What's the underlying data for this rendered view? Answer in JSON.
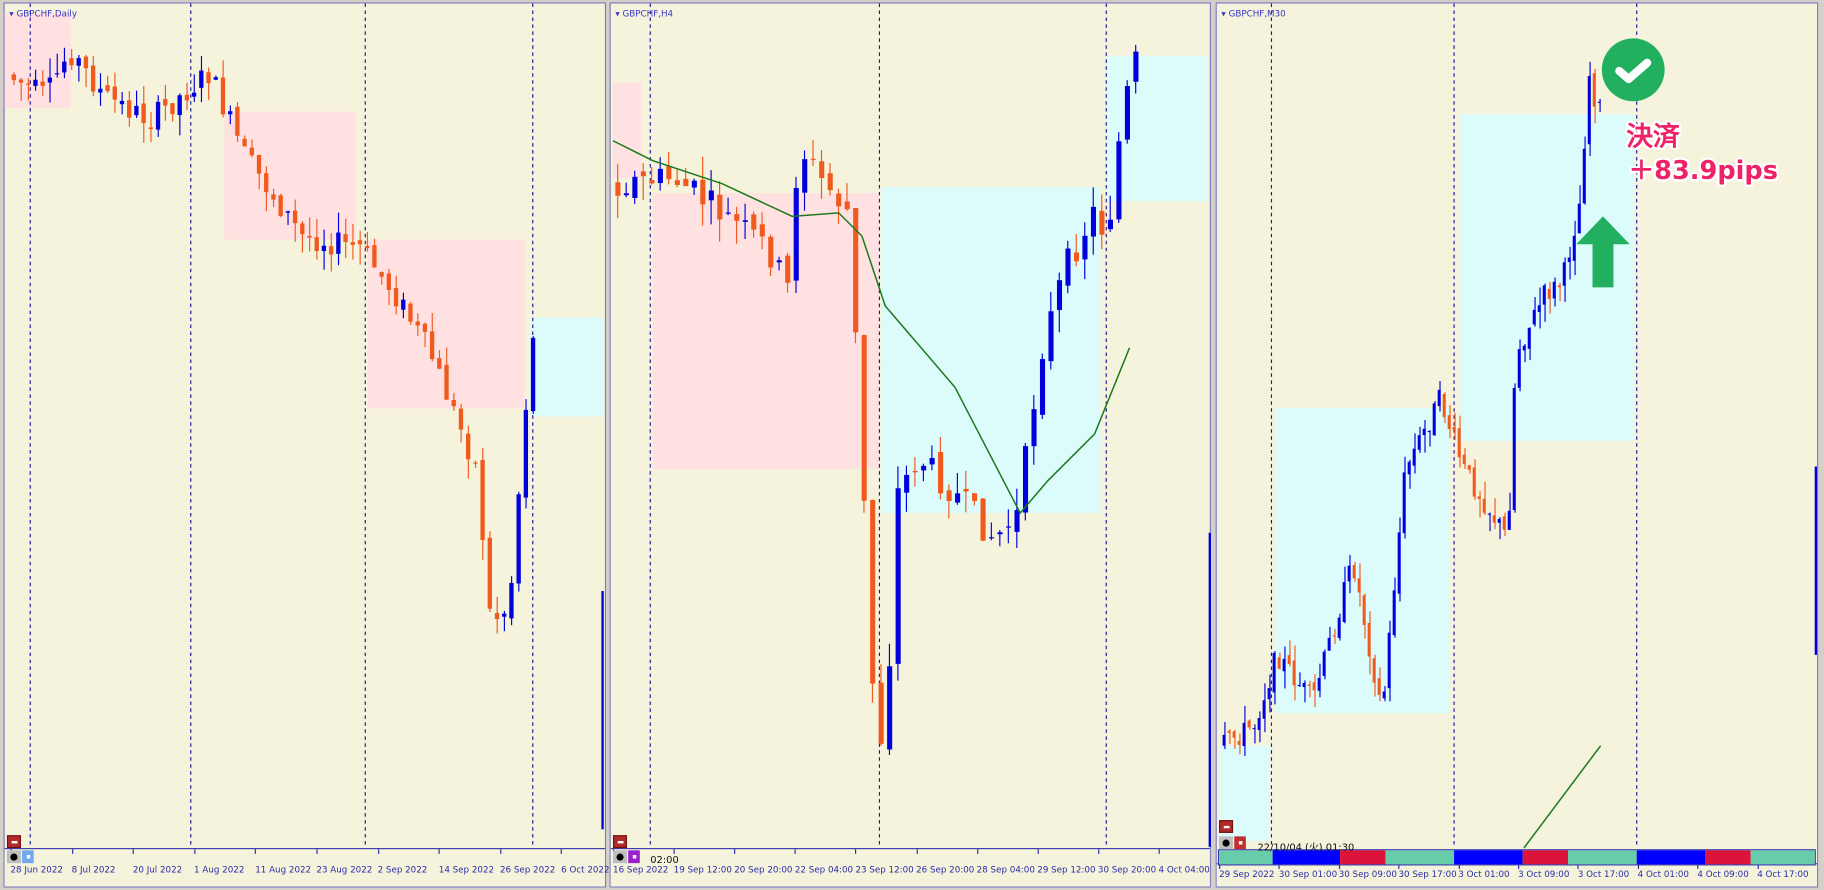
{
  "colors": {
    "background": "#f5f3dc",
    "bull_candle": "#0000dd",
    "bear_candle": "#f05a1e",
    "supply_zone": "#ffe1e1",
    "demand_zone": "#dcfcfc",
    "moving_average": "#1e7a1e",
    "axis_text": "#2a2aa8",
    "annotation_text": "#ee2266",
    "annotation_green": "#22b060"
  },
  "charts": [
    {
      "title": "GBPCHF,Daily",
      "time_labels": [
        "28 Jun 2022",
        "8 Jul 2022",
        "20 Jul 2022",
        "1 Aug 2022",
        "11 Aug 2022",
        "23 Aug 2022",
        "2 Sep 2022",
        "14 Sep 2022",
        "26 Sep 2022",
        "6 Oct 2022"
      ]
    },
    {
      "title": "GBPCHF,H4",
      "cursor_time": "02:00",
      "time_labels": [
        "16 Sep 2022",
        "19 Sep 12:00",
        "20 Sep 20:00",
        "22 Sep 04:00",
        "23 Sep 12:00",
        "26 Sep 20:00",
        "28 Sep 04:00",
        "29 Sep 12:00",
        "30 Sep 20:00",
        "4 Oct 04:00"
      ]
    },
    {
      "title": "GBPCHF,M30",
      "cursor_time": "22/10/04 (火) 01:30",
      "time_labels": [
        "29 Sep 2022",
        "30 Sep 01:00",
        "30 Sep 09:00",
        "30 Sep 17:00",
        "3 Oct 01:00",
        "3 Oct 09:00",
        "3 Oct 17:00",
        "4 Oct 01:00",
        "4 Oct 09:00",
        "4 Oct 17:00"
      ],
      "sessions": [
        {
          "name": "teal",
          "color": "#66ccaa"
        },
        {
          "name": "blue",
          "color": "#0000ff"
        },
        {
          "name": "red",
          "color": "#dc143c"
        },
        {
          "name": "teal",
          "color": "#66ccaa"
        },
        {
          "name": "blue",
          "color": "#0000ff"
        },
        {
          "name": "red",
          "color": "#dc143c"
        },
        {
          "name": "teal",
          "color": "#66ccaa"
        },
        {
          "name": "blue",
          "color": "#0000ff"
        },
        {
          "name": "red",
          "color": "#dc143c"
        },
        {
          "name": "teal",
          "color": "#66ccaa"
        }
      ]
    }
  ],
  "annotation": {
    "icon": "check-circle-icon",
    "line1": "決済",
    "line2": "＋83.9pips",
    "arrow": "up-arrow-icon"
  }
}
